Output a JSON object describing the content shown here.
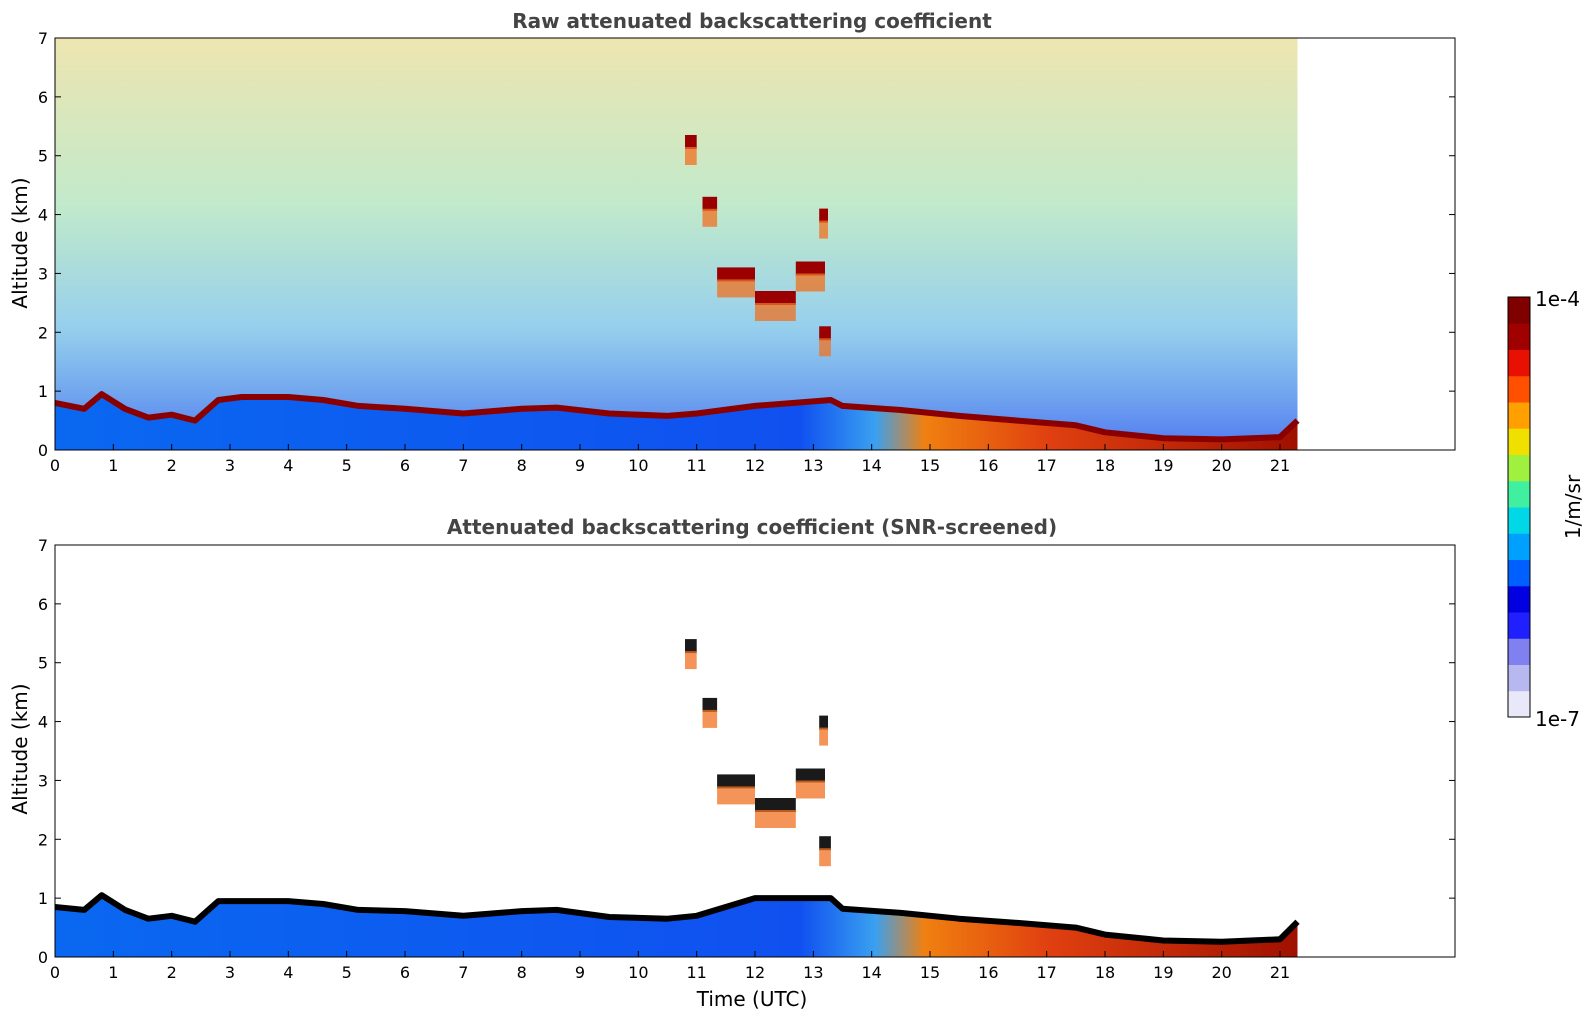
{
  "chart_data": [
    {
      "type": "heatmap",
      "title": "Raw attenuated backscattering coefficient",
      "xlabel": "",
      "ylabel": "Altitude (km)",
      "xlim": [
        0,
        24
      ],
      "ylim": [
        0,
        7
      ],
      "x_ticks": [
        0,
        1,
        2,
        3,
        4,
        5,
        6,
        7,
        8,
        9,
        10,
        11,
        12,
        13,
        14,
        15,
        16,
        17,
        18,
        19,
        20,
        21
      ],
      "y_ticks": [
        0,
        1,
        2,
        3,
        4,
        5,
        6,
        7
      ],
      "data_end_hour": 21.3,
      "boundary_layer_top_km": [
        [
          0,
          0.8
        ],
        [
          0.5,
          0.7
        ],
        [
          0.8,
          0.95
        ],
        [
          1.2,
          0.7
        ],
        [
          1.6,
          0.55
        ],
        [
          2.0,
          0.6
        ],
        [
          2.4,
          0.5
        ],
        [
          2.8,
          0.85
        ],
        [
          3.2,
          0.9
        ],
        [
          4.0,
          0.9
        ],
        [
          4.6,
          0.85
        ],
        [
          5.2,
          0.75
        ],
        [
          6.0,
          0.7
        ],
        [
          7.0,
          0.62
        ],
        [
          8.0,
          0.7
        ],
        [
          8.6,
          0.72
        ],
        [
          9.5,
          0.62
        ],
        [
          10.5,
          0.58
        ],
        [
          11.0,
          0.62
        ],
        [
          12.0,
          0.75
        ],
        [
          13.3,
          0.85
        ],
        [
          13.5,
          0.75
        ],
        [
          14.5,
          0.68
        ],
        [
          15.5,
          0.58
        ],
        [
          16.5,
          0.5
        ],
        [
          17.5,
          0.42
        ],
        [
          18.0,
          0.3
        ],
        [
          19.0,
          0.2
        ],
        [
          20.0,
          0.18
        ],
        [
          21.0,
          0.22
        ],
        [
          21.3,
          0.5
        ]
      ],
      "cloud_layers": [
        {
          "hour_start": 10.8,
          "hour_end": 11.0,
          "alt_km": 5.25
        },
        {
          "hour_start": 11.1,
          "hour_end": 11.35,
          "alt_km": 4.2
        },
        {
          "hour_start": 11.35,
          "hour_end": 12.0,
          "alt_km": 3.0
        },
        {
          "hour_start": 12.0,
          "hour_end": 12.7,
          "alt_km": 2.6
        },
        {
          "hour_start": 12.7,
          "hour_end": 13.2,
          "alt_km": 3.1
        },
        {
          "hour_start": 13.1,
          "hour_end": 13.25,
          "alt_km": 4.0
        },
        {
          "hour_start": 13.1,
          "hour_end": 13.3,
          "alt_km": 2.0
        }
      ]
    },
    {
      "type": "heatmap",
      "title": "Attenuated backscattering coefficient (SNR-screened)",
      "xlabel": "Time (UTC)",
      "ylabel": "Altitude (km)",
      "xlim": [
        0,
        24
      ],
      "ylim": [
        0,
        7
      ],
      "x_ticks": [
        0,
        1,
        2,
        3,
        4,
        5,
        6,
        7,
        8,
        9,
        10,
        11,
        12,
        13,
        14,
        15,
        16,
        17,
        18,
        19,
        20,
        21
      ],
      "y_ticks": [
        0,
        1,
        2,
        3,
        4,
        5,
        6,
        7
      ],
      "data_end_hour": 21.3,
      "boundary_layer_top_km": [
        [
          0,
          0.85
        ],
        [
          0.5,
          0.8
        ],
        [
          0.8,
          1.05
        ],
        [
          1.2,
          0.8
        ],
        [
          1.6,
          0.65
        ],
        [
          2.0,
          0.7
        ],
        [
          2.4,
          0.6
        ],
        [
          2.8,
          0.95
        ],
        [
          3.2,
          0.95
        ],
        [
          4.0,
          0.95
        ],
        [
          4.6,
          0.9
        ],
        [
          5.2,
          0.8
        ],
        [
          6.0,
          0.78
        ],
        [
          7.0,
          0.7
        ],
        [
          8.0,
          0.78
        ],
        [
          8.6,
          0.8
        ],
        [
          9.5,
          0.68
        ],
        [
          10.5,
          0.65
        ],
        [
          11.0,
          0.7
        ],
        [
          12.0,
          1.0
        ],
        [
          13.3,
          1.0
        ],
        [
          13.5,
          0.82
        ],
        [
          14.5,
          0.75
        ],
        [
          15.5,
          0.65
        ],
        [
          16.5,
          0.58
        ],
        [
          17.5,
          0.5
        ],
        [
          18.0,
          0.38
        ],
        [
          19.0,
          0.28
        ],
        [
          20.0,
          0.26
        ],
        [
          21.0,
          0.3
        ],
        [
          21.3,
          0.6
        ]
      ],
      "cloud_layers": [
        {
          "hour_start": 10.8,
          "hour_end": 11.0,
          "alt_km": 5.3
        },
        {
          "hour_start": 11.1,
          "hour_end": 11.35,
          "alt_km": 4.3
        },
        {
          "hour_start": 11.35,
          "hour_end": 12.0,
          "alt_km": 3.0
        },
        {
          "hour_start": 12.0,
          "hour_end": 12.7,
          "alt_km": 2.6
        },
        {
          "hour_start": 12.7,
          "hour_end": 13.2,
          "alt_km": 3.1
        },
        {
          "hour_start": 13.1,
          "hour_end": 13.25,
          "alt_km": 4.0
        },
        {
          "hour_start": 13.1,
          "hour_end": 13.3,
          "alt_km": 1.95
        }
      ]
    }
  ],
  "colorbar": {
    "label": "1/m/sr",
    "max_label": "1e-4",
    "min_label": "1e-7",
    "scale": "log",
    "colors": [
      "#e8e8f8",
      "#b8b8f0",
      "#8080f0",
      "#2020ff",
      "#0000e0",
      "#0060ff",
      "#00a0ff",
      "#00d8e8",
      "#40f0a0",
      "#a0f040",
      "#f0e000",
      "#ffa000",
      "#ff5000",
      "#e81000",
      "#a00000",
      "#800000"
    ]
  }
}
